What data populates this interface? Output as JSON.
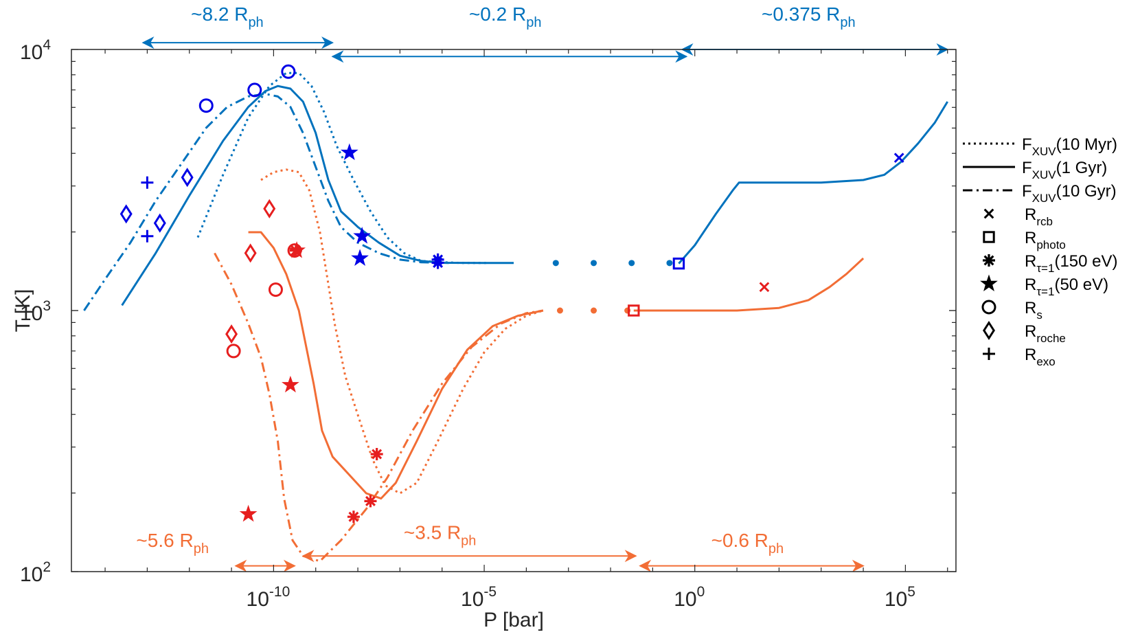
{
  "chart_data": {
    "type": "line",
    "title": "",
    "xlabel": "P [bar]",
    "ylabel": "T [K]",
    "xscale": "log",
    "yscale": "log",
    "xlim_log10": [
      -14.8,
      6.2
    ],
    "ylim_log10": [
      2,
      4
    ],
    "x_ticks": [
      {
        "exp": -10,
        "base": "10",
        "sup": "-10"
      },
      {
        "exp": -5,
        "base": "10",
        "sup": "-5"
      },
      {
        "exp": 0,
        "base": "10",
        "sup": "0"
      },
      {
        "exp": 5,
        "base": "10",
        "sup": "5"
      }
    ],
    "y_ticks": [
      {
        "exp": 2,
        "base": "10",
        "sup": "2"
      },
      {
        "exp": 3,
        "base": "10",
        "sup": "3"
      },
      {
        "exp": 4,
        "base": "10",
        "sup": "4"
      }
    ],
    "colors": {
      "blue": "#0072bd",
      "orange": "#f26d35",
      "marker_blue": "#0000e6",
      "marker_red": "#e61e1e",
      "axis": "#262626"
    },
    "series": [
      {
        "name": "blue-upper-10myr",
        "color": "blue",
        "style": "dotted",
        "points": [
          [
            -11.8,
            3.28
          ],
          [
            -11.2,
            3.52
          ],
          [
            -10.6,
            3.74
          ],
          [
            -10.1,
            3.86
          ],
          [
            -9.7,
            3.91
          ],
          [
            -9.4,
            3.91
          ],
          [
            -9.1,
            3.86
          ],
          [
            -8.8,
            3.76
          ],
          [
            -8.5,
            3.63
          ],
          [
            -8.1,
            3.5
          ],
          [
            -7.7,
            3.38
          ],
          [
            -7.3,
            3.28
          ],
          [
            -6.9,
            3.22
          ],
          [
            -6.5,
            3.19
          ],
          [
            -6.0,
            3.185
          ],
          [
            -5.5,
            3.182
          ],
          [
            -4.9,
            3.182
          ]
        ]
      },
      {
        "name": "blue-upper-1gyr",
        "color": "blue",
        "style": "solid",
        "points": [
          [
            -13.6,
            3.02
          ],
          [
            -12.8,
            3.22
          ],
          [
            -12.0,
            3.44
          ],
          [
            -11.2,
            3.65
          ],
          [
            -10.6,
            3.78
          ],
          [
            -10.2,
            3.84
          ],
          [
            -9.9,
            3.86
          ],
          [
            -9.6,
            3.85
          ],
          [
            -9.3,
            3.8
          ],
          [
            -9.0,
            3.68
          ],
          [
            -8.7,
            3.5
          ],
          [
            -8.4,
            3.38
          ],
          [
            -8.0,
            3.32
          ],
          [
            -7.5,
            3.26
          ],
          [
            -7.0,
            3.21
          ],
          [
            -6.5,
            3.19
          ],
          [
            -6.0,
            3.183
          ],
          [
            -5.0,
            3.182
          ],
          [
            -4.3,
            3.182
          ]
        ]
      },
      {
        "name": "blue-upper-10gyr",
        "color": "blue",
        "style": "dashdot",
        "points": [
          [
            -14.5,
            3.0
          ],
          [
            -14.0,
            3.12
          ],
          [
            -13.4,
            3.26
          ],
          [
            -12.8,
            3.42
          ],
          [
            -12.2,
            3.56
          ],
          [
            -11.6,
            3.7
          ],
          [
            -11.1,
            3.78
          ],
          [
            -10.6,
            3.82
          ],
          [
            -10.2,
            3.83
          ],
          [
            -9.9,
            3.82
          ],
          [
            -9.6,
            3.78
          ],
          [
            -9.3,
            3.68
          ],
          [
            -9.0,
            3.55
          ],
          [
            -8.7,
            3.42
          ],
          [
            -8.4,
            3.32
          ],
          [
            -8.0,
            3.26
          ],
          [
            -7.5,
            3.22
          ],
          [
            -7.0,
            3.195
          ],
          [
            -6.5,
            3.185
          ],
          [
            -5.8,
            3.182
          ]
        ]
      },
      {
        "name": "blue-dots",
        "color": "blue",
        "style": "dots",
        "points": [
          [
            -3.3,
            3.182
          ],
          [
            -2.4,
            3.182
          ],
          [
            -1.5,
            3.182
          ],
          [
            -0.6,
            3.182
          ]
        ]
      },
      {
        "name": "blue-deep",
        "color": "blue",
        "style": "solid",
        "points": [
          [
            -0.38,
            3.18
          ],
          [
            0.0,
            3.25
          ],
          [
            0.5,
            3.37
          ],
          [
            0.9,
            3.46
          ],
          [
            1.05,
            3.49
          ],
          [
            2.0,
            3.49
          ],
          [
            3.0,
            3.49
          ],
          [
            4.0,
            3.5
          ],
          [
            4.5,
            3.52
          ],
          [
            4.9,
            3.57
          ],
          [
            5.3,
            3.64
          ],
          [
            5.7,
            3.72
          ],
          [
            6.0,
            3.8
          ]
        ]
      },
      {
        "name": "orange-upper-10myr",
        "color": "orange",
        "style": "dotted",
        "points": [
          [
            -10.3,
            3.5
          ],
          [
            -10.0,
            3.53
          ],
          [
            -9.7,
            3.54
          ],
          [
            -9.4,
            3.53
          ],
          [
            -9.15,
            3.46
          ],
          [
            -8.9,
            3.3
          ],
          [
            -8.75,
            3.15
          ],
          [
            -8.55,
            2.95
          ],
          [
            -8.3,
            2.75
          ],
          [
            -8.0,
            2.6
          ],
          [
            -7.65,
            2.43
          ],
          [
            -7.35,
            2.33
          ],
          [
            -7.0,
            2.3
          ],
          [
            -6.6,
            2.34
          ],
          [
            -6.1,
            2.5
          ],
          [
            -5.5,
            2.7
          ],
          [
            -5.0,
            2.84
          ],
          [
            -4.5,
            2.93
          ],
          [
            -4.0,
            2.98
          ],
          [
            -3.6,
            3.0
          ]
        ]
      },
      {
        "name": "orange-upper-1gyr",
        "color": "orange",
        "style": "solid",
        "points": [
          [
            -10.6,
            3.3
          ],
          [
            -10.3,
            3.3
          ],
          [
            -10.0,
            3.24
          ],
          [
            -9.7,
            3.14
          ],
          [
            -9.4,
            3.0
          ],
          [
            -9.2,
            2.84
          ],
          [
            -9.05,
            2.72
          ],
          [
            -8.85,
            2.54
          ],
          [
            -8.6,
            2.44
          ],
          [
            -8.2,
            2.37
          ],
          [
            -7.8,
            2.3
          ],
          [
            -7.45,
            2.28
          ],
          [
            -7.1,
            2.34
          ],
          [
            -6.6,
            2.5
          ],
          [
            -6.0,
            2.7
          ],
          [
            -5.4,
            2.85
          ],
          [
            -4.8,
            2.94
          ],
          [
            -4.2,
            2.98
          ],
          [
            -3.6,
            3.0
          ]
        ]
      },
      {
        "name": "orange-upper-10gyr",
        "color": "orange",
        "style": "dashdot",
        "points": [
          [
            -11.4,
            3.22
          ],
          [
            -11.0,
            3.1
          ],
          [
            -10.6,
            2.95
          ],
          [
            -10.3,
            2.82
          ],
          [
            -10.1,
            2.68
          ],
          [
            -9.9,
            2.5
          ],
          [
            -9.75,
            2.28
          ],
          [
            -9.55,
            2.12
          ],
          [
            -9.3,
            2.06
          ],
          [
            -8.9,
            2.04
          ],
          [
            -8.4,
            2.12
          ],
          [
            -7.8,
            2.24
          ],
          [
            -7.3,
            2.36
          ],
          [
            -6.7,
            2.54
          ],
          [
            -6.0,
            2.72
          ],
          [
            -5.3,
            2.86
          ],
          [
            -4.6,
            2.95
          ],
          [
            -4.0,
            2.99
          ],
          [
            -3.6,
            3.0
          ]
        ]
      },
      {
        "name": "orange-dots",
        "color": "orange",
        "style": "dots",
        "points": [
          [
            -3.2,
            3.0
          ],
          [
            -2.4,
            3.0
          ],
          [
            -1.6,
            3.0
          ]
        ]
      },
      {
        "name": "orange-deep",
        "color": "orange",
        "style": "solid",
        "points": [
          [
            -1.45,
            3.0
          ],
          [
            0.0,
            3.0
          ],
          [
            1.0,
            3.0
          ],
          [
            2.0,
            3.01
          ],
          [
            2.7,
            3.04
          ],
          [
            3.2,
            3.09
          ],
          [
            3.6,
            3.14
          ],
          [
            4.0,
            3.2
          ]
        ]
      }
    ],
    "markers": [
      {
        "x": -9.65,
        "y": 3.915,
        "shape": "circle",
        "color": "marker_blue"
      },
      {
        "x": -10.45,
        "y": 3.845,
        "shape": "circle",
        "color": "marker_blue"
      },
      {
        "x": -11.6,
        "y": 3.785,
        "shape": "circle",
        "color": "marker_blue"
      },
      {
        "x": -8.2,
        "y": 3.605,
        "shape": "star",
        "color": "marker_blue"
      },
      {
        "x": -7.9,
        "y": 3.285,
        "shape": "star",
        "color": "marker_blue"
      },
      {
        "x": -7.95,
        "y": 3.2,
        "shape": "star",
        "color": "marker_blue"
      },
      {
        "x": -6.1,
        "y": 3.195,
        "shape": "asterisk",
        "color": "marker_blue"
      },
      {
        "x": -6.1,
        "y": 3.183,
        "shape": "asterisk",
        "color": "marker_blue"
      },
      {
        "x": -13.5,
        "y": 3.37,
        "shape": "diamond",
        "color": "marker_blue"
      },
      {
        "x": -12.7,
        "y": 3.335,
        "shape": "diamond",
        "color": "marker_blue"
      },
      {
        "x": -12.05,
        "y": 3.51,
        "shape": "diamond",
        "color": "marker_blue"
      },
      {
        "x": -13.0,
        "y": 3.49,
        "shape": "plus",
        "color": "marker_blue"
      },
      {
        "x": -13.0,
        "y": 3.285,
        "shape": "plus",
        "color": "marker_blue"
      },
      {
        "x": -0.38,
        "y": 3.18,
        "shape": "square",
        "color": "marker_blue"
      },
      {
        "x": 4.85,
        "y": 3.585,
        "shape": "cross",
        "color": "marker_blue"
      },
      {
        "x": -9.95,
        "y": 3.08,
        "shape": "circle",
        "color": "marker_red"
      },
      {
        "x": -10.95,
        "y": 2.845,
        "shape": "circle",
        "color": "marker_red"
      },
      {
        "x": -9.5,
        "y": 3.23,
        "shape": "circle",
        "color": "marker_red"
      },
      {
        "x": -9.45,
        "y": 3.23,
        "shape": "star",
        "color": "marker_red"
      },
      {
        "x": -9.6,
        "y": 2.715,
        "shape": "star",
        "color": "marker_red"
      },
      {
        "x": -10.6,
        "y": 2.22,
        "shape": "star",
        "color": "marker_red"
      },
      {
        "x": -9.47,
        "y": 3.23,
        "shape": "asterisk",
        "color": "marker_red"
      },
      {
        "x": -7.55,
        "y": 2.45,
        "shape": "asterisk",
        "color": "marker_red"
      },
      {
        "x": -7.7,
        "y": 2.27,
        "shape": "asterisk",
        "color": "marker_red"
      },
      {
        "x": -8.1,
        "y": 2.21,
        "shape": "asterisk",
        "color": "marker_red"
      },
      {
        "x": -10.1,
        "y": 3.39,
        "shape": "diamond",
        "color": "marker_red"
      },
      {
        "x": -10.55,
        "y": 3.22,
        "shape": "diamond",
        "color": "marker_red"
      },
      {
        "x": -11.0,
        "y": 2.91,
        "shape": "diamond",
        "color": "marker_red"
      },
      {
        "x": -1.45,
        "y": 3.0,
        "shape": "square",
        "color": "marker_red"
      },
      {
        "x": 1.65,
        "y": 3.09,
        "shape": "cross",
        "color": "marker_red"
      }
    ],
    "range_arrows": [
      {
        "x1": -13.1,
        "x2": -8.6,
        "y": 4.026,
        "color": "blue",
        "label": "~8.2 R",
        "sub": "ph",
        "label_x": -11.1,
        "label_y": 4.11
      },
      {
        "x1": -8.6,
        "x2": -0.2,
        "y": 3.973,
        "color": "blue",
        "label": "~0.2 R",
        "sub": "ph",
        "label_x": -4.5,
        "label_y": 4.11
      },
      {
        "x1": -0.3,
        "x2": 6.0,
        "y": 4.0,
        "color": "blue",
        "label": "~0.375 R",
        "sub": "ph",
        "label_x": 2.7,
        "label_y": 4.11
      },
      {
        "x1": -10.9,
        "x2": -9.5,
        "y": 2.022,
        "color": "orange",
        "label": "~5.6 R",
        "sub": "ph",
        "label_x": -12.4,
        "label_y": 2.095
      },
      {
        "x1": -9.3,
        "x2": -1.4,
        "y": 2.06,
        "color": "orange",
        "label": "~3.5 R",
        "sub": "ph",
        "label_x": -6.05,
        "label_y": 2.125
      },
      {
        "x1": -1.3,
        "x2": 4.0,
        "y": 2.022,
        "color": "orange",
        "label": "~0.6 R",
        "sub": "ph",
        "label_x": 1.25,
        "label_y": 2.095
      }
    ],
    "legend": {
      "position": "right",
      "entries": [
        {
          "symbol": "dotted",
          "label": "F",
          "sub": "XUV",
          "suffix": "(10 Myr)"
        },
        {
          "symbol": "solid",
          "label": "F",
          "sub": "XUV",
          "suffix": "(1 Gyr)"
        },
        {
          "symbol": "dashdot",
          "label": "F",
          "sub": "XUV",
          "suffix": "(10 Gyr)"
        },
        {
          "symbol": "cross",
          "label": "R",
          "sub": "rcb",
          "suffix": ""
        },
        {
          "symbol": "square",
          "label": "R",
          "sub": "photo",
          "suffix": ""
        },
        {
          "symbol": "asterisk",
          "label": "R",
          "sub": "τ=1",
          "suffix": "(150 eV)"
        },
        {
          "symbol": "star",
          "label": "R",
          "sub": "τ=1",
          "suffix": "(50 eV)"
        },
        {
          "symbol": "circle",
          "label": "R",
          "sub": "s",
          "suffix": ""
        },
        {
          "symbol": "diamond",
          "label": "R",
          "sub": "roche",
          "suffix": ""
        },
        {
          "symbol": "plus",
          "label": "R",
          "sub": "exo",
          "suffix": ""
        }
      ]
    }
  }
}
